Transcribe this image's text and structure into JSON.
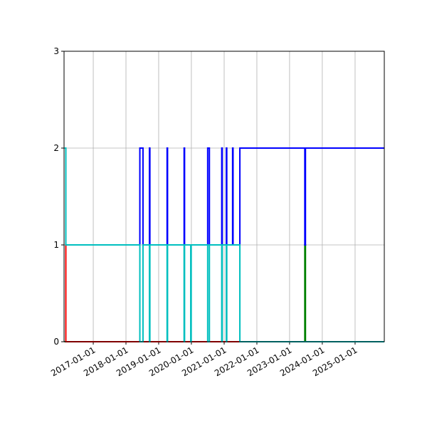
{
  "chart_data": {
    "type": "step",
    "xlim": [
      "2016-02-10",
      "2025-11-23"
    ],
    "xticks": [
      "2017-01-01",
      "2018-01-01",
      "2019-01-01",
      "2020-01-01",
      "2021-01-01",
      "2022-01-01",
      "2023-01-01",
      "2024-01-01",
      "2025-01-01"
    ],
    "ylim": [
      0,
      3
    ],
    "yticks": [
      0,
      1,
      2,
      3
    ],
    "grid": true,
    "series": [
      {
        "color": "#008000",
        "x": [
          "2016-02-15",
          "2023-06-20",
          "2023-06-27",
          "2025-11-23"
        ],
        "values": [
          0,
          1,
          0,
          0
        ]
      },
      {
        "color": "#ff0000",
        "x": [
          "2016-02-20",
          "2016-03-01",
          "2025-11-23"
        ],
        "values": [
          1,
          0,
          0
        ]
      },
      {
        "color": "#0000ff",
        "x": [
          "2016-02-28",
          "2018-06-05",
          "2018-07-10",
          "2018-09-20",
          "2018-09-25",
          "2019-04-05",
          "2019-04-10",
          "2019-10-12",
          "2019-10-17",
          "2020-07-01",
          "2020-07-20",
          "2020-12-05",
          "2020-12-10",
          "2021-01-25",
          "2021-01-30",
          "2021-04-05",
          "2021-04-10",
          "2021-06-25",
          "2023-06-20",
          "2023-06-27",
          "2025-11-23"
        ],
        "values": [
          1,
          2,
          1,
          2,
          1,
          2,
          1,
          2,
          1,
          2,
          1,
          2,
          1,
          2,
          1,
          2,
          1,
          2,
          1,
          2,
          2
        ]
      },
      {
        "color": "#00bfbf",
        "x": [
          "2016-02-15",
          "2016-03-01",
          "2018-06-05",
          "2018-07-10",
          "2018-09-20",
          "2018-09-25",
          "2019-04-05",
          "2019-04-10",
          "2019-10-12",
          "2019-10-17",
          "2019-12-25",
          "2019-12-30",
          "2020-07-01",
          "2020-07-20",
          "2020-12-05",
          "2020-12-10",
          "2021-01-25",
          "2021-01-30",
          "2021-06-25",
          "2025-11-23"
        ],
        "values": [
          2,
          1,
          0,
          1,
          0,
          1,
          0,
          1,
          0,
          1,
          0,
          1,
          0,
          1,
          0,
          1,
          0,
          1,
          0,
          0
        ]
      }
    ]
  }
}
